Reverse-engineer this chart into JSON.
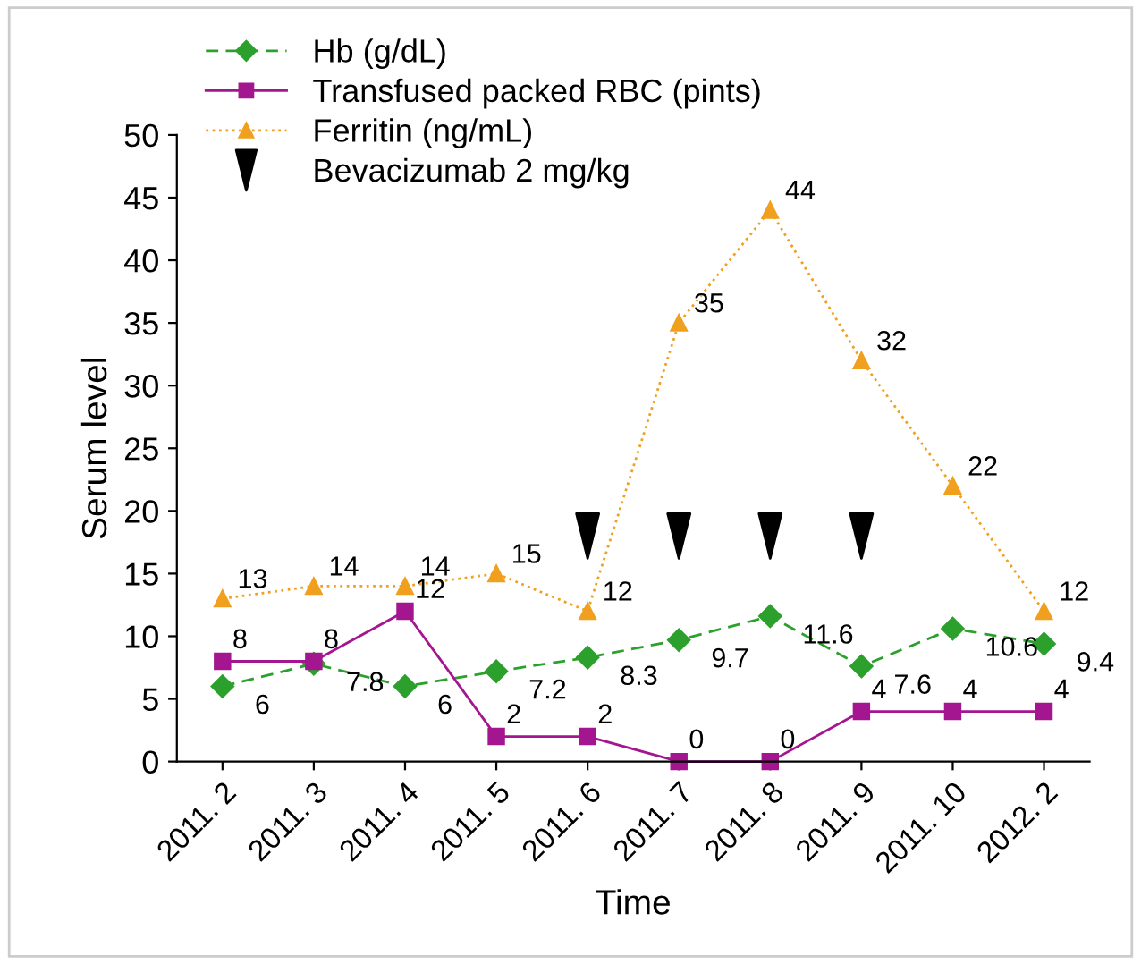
{
  "chart_data": {
    "type": "line",
    "xlabel": "Time",
    "ylabel": "Serum level",
    "categories": [
      "2011. 2",
      "2011. 3",
      "2011. 4",
      "2011. 5",
      "2011. 6",
      "2011. 7",
      "2011. 8",
      "2011. 9",
      "2011. 10",
      "2012. 2"
    ],
    "series": [
      {
        "name": "Hb (g/dL)",
        "color": "#2ca02c",
        "marker": "diamond",
        "line_style": "dashed",
        "values": [
          6,
          7.8,
          6,
          7.2,
          8.3,
          9.7,
          11.6,
          7.6,
          10.6,
          9.4
        ],
        "value_labels": [
          "6",
          "7.8",
          "6",
          "7.2",
          "8.3",
          "9.7",
          "11.6",
          "7.6",
          "10.6",
          "9.4"
        ]
      },
      {
        "name": "Transfused packed RBC (pints)",
        "color": "#a3168f",
        "marker": "square",
        "line_style": "solid",
        "values": [
          8,
          8,
          12,
          2,
          2,
          0,
          0,
          4,
          4,
          4
        ],
        "value_labels": [
          "8",
          "8",
          "12",
          "2",
          "2",
          "0",
          "0",
          "4",
          "4",
          "4"
        ]
      },
      {
        "name": "Ferritin (ng/mL)",
        "color": "#f0a01e",
        "marker": "triangle",
        "line_style": "dotted",
        "values": [
          13,
          14,
          14,
          15,
          12,
          35,
          44,
          32,
          22,
          12
        ],
        "value_labels": [
          "13",
          "14",
          "14",
          "15",
          "12",
          "35",
          "44",
          "32",
          "22",
          "12"
        ]
      },
      {
        "name": "Bevacizumab 2 mg/kg",
        "type": "scatter",
        "color": "#000000",
        "marker": "triangle",
        "values": [
          null,
          null,
          null,
          null,
          18,
          18,
          18,
          18,
          null,
          null
        ]
      }
    ],
    "ylim": [
      0,
      50
    ],
    "yticks": [
      0,
      5,
      10,
      15,
      20,
      25,
      30,
      35,
      40,
      45,
      50
    ],
    "grid": false,
    "legend": "top left"
  }
}
